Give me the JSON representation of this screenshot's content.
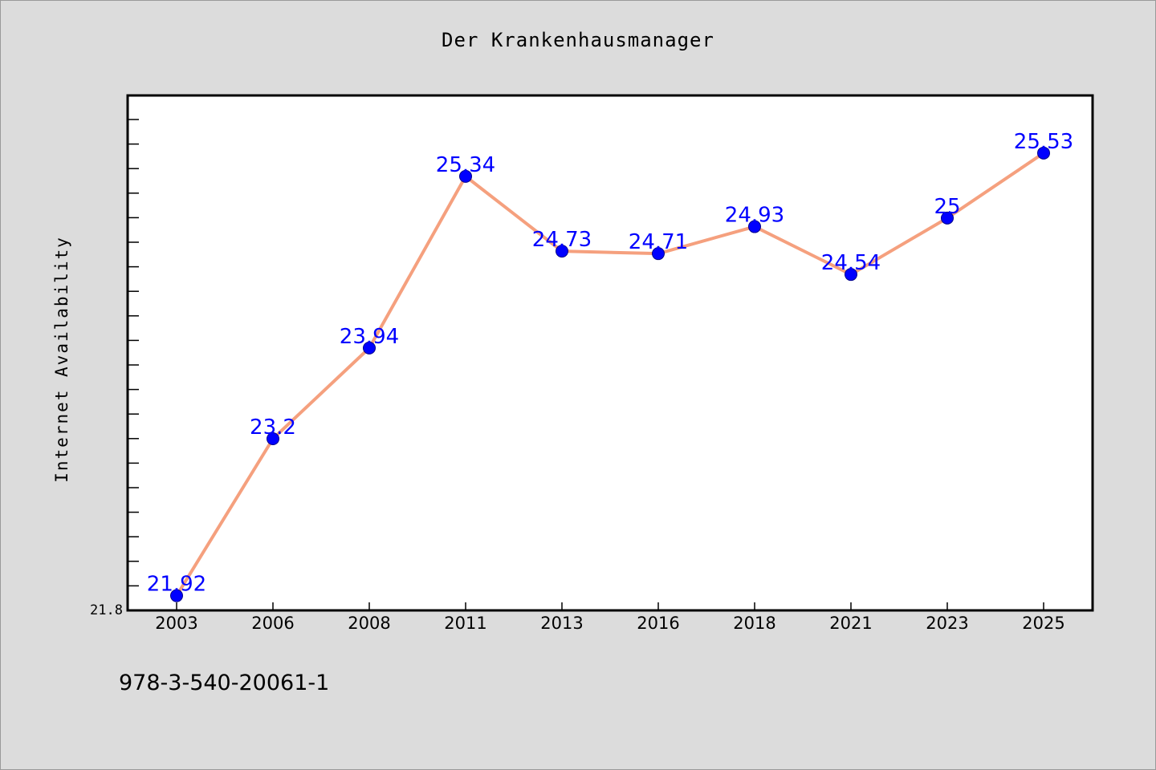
{
  "chart_data": {
    "type": "line",
    "title": "Der Krankenhausmanager",
    "ylabel": "Internet Availability",
    "xlabel": "",
    "categories": [
      "2003",
      "2006",
      "2008",
      "2011",
      "2013",
      "2016",
      "2018",
      "2021",
      "2023",
      "2025"
    ],
    "series": [
      {
        "values": [
          21.92,
          23.2,
          23.94,
          25.34,
          24.73,
          24.71,
          24.93,
          24.54,
          25.0,
          25.53
        ],
        "labels": [
          "21.92",
          "23.2",
          "23.94",
          "25.34",
          "24.73",
          "24.71",
          "24.93",
          "24.54",
          "25",
          "25.53"
        ],
        "line_color": "#f5a07e",
        "marker_color": "#0000ff"
      }
    ],
    "ylim": [
      21.8,
      26.0
    ],
    "yticklabels": [
      "21.8"
    ],
    "grid": false,
    "legend": "none"
  },
  "footer": {
    "code": "978-3-540-20061-1"
  },
  "colors": {
    "background": "#dcdcdc",
    "plot_background": "#ffffff",
    "data_label": "#0000ff"
  }
}
